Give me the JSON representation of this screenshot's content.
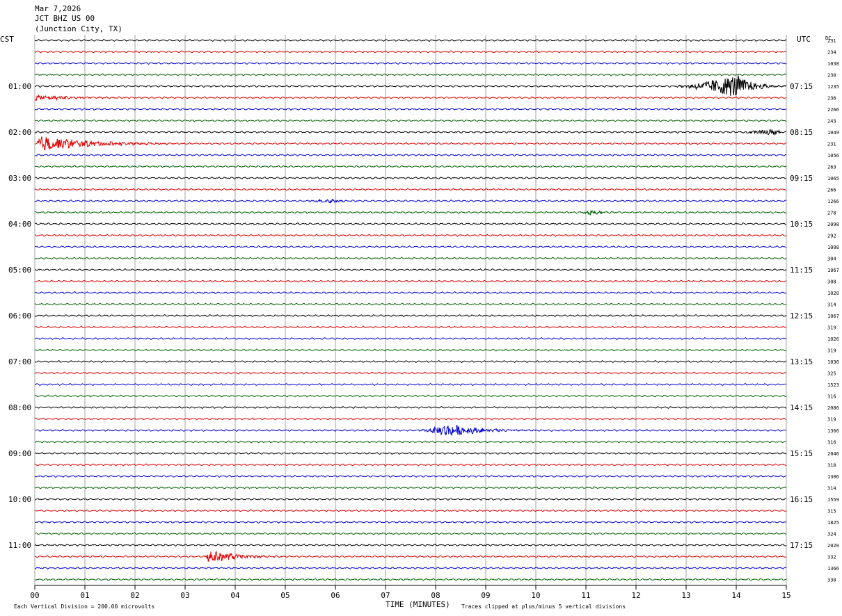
{
  "header": {
    "date": "Mar 7,2026",
    "station": "JCT BHZ US 00",
    "location": "(Junction City, TX)"
  },
  "left_timezone": "CST",
  "right_timezone": "UTC",
  "dc_label": "DC",
  "footer": {
    "scale_note": "Each Vertical Division =  200.00 microvolts",
    "xlabel": "TIME (MINUTES)",
    "clip_note": "Traces clipped at plus/minus 5 vertical divisions"
  },
  "chart_data": {
    "type": "line",
    "subtype": "helicorder",
    "xlabel": "TIME (MINUTES)",
    "xlim": [
      0,
      15
    ],
    "x_ticks": [
      "00",
      "01",
      "02",
      "03",
      "04",
      "05",
      "06",
      "07",
      "08",
      "09",
      "10",
      "11",
      "12",
      "13",
      "14",
      "15"
    ],
    "minutes_per_line": 15,
    "line_count": 48,
    "trace_colors": [
      "#000000",
      "#e00000",
      "#0000d0",
      "#006000"
    ],
    "left_hour_labels": [
      "01:00",
      "02:00",
      "03:00",
      "04:00",
      "05:00",
      "06:00",
      "07:00",
      "08:00",
      "09:00",
      "10:00",
      "11:00"
    ],
    "right_hour_labels": [
      "07:15",
      "08:15",
      "09:15",
      "10:15",
      "11:15",
      "12:15",
      "13:15",
      "14:15",
      "15:15",
      "16:15",
      "17:15"
    ],
    "dc_offsets": [
      "231",
      "234",
      "1038",
      "230",
      "1235",
      "236",
      "2266",
      "243",
      "1049",
      "231",
      "1056",
      "263",
      "1065",
      "266",
      "1266",
      "278",
      "2098",
      "292",
      "1008",
      "304",
      "1067",
      "308",
      "1020",
      "314",
      "1067",
      "319",
      "1026",
      "319",
      "1036",
      "325",
      "1523",
      "316",
      "2086",
      "319",
      "1366",
      "316",
      "2046",
      "310",
      "1306",
      "314",
      "1559",
      "315",
      "1825",
      "324",
      "2020",
      "332",
      "1366",
      "330"
    ],
    "events": [
      {
        "line": 4,
        "start_min": 12.7,
        "peak_min": 14.0,
        "end_min": 15.0,
        "amplitude_div": 5.0,
        "color": "#000000"
      },
      {
        "line": 5,
        "start_min": 0.0,
        "peak_min": 0.0,
        "end_min": 2.5,
        "amplitude_div": 1.2,
        "color": "#e00000"
      },
      {
        "line": 8,
        "start_min": 13.9,
        "peak_min": 14.8,
        "end_min": 15.0,
        "amplitude_div": 1.5,
        "color": "#000000"
      },
      {
        "line": 9,
        "start_min": 0.0,
        "peak_min": 0.1,
        "end_min": 3.0,
        "amplitude_div": 3.5,
        "color": "#e00000"
      },
      {
        "line": 14,
        "start_min": 5.3,
        "peak_min": 5.9,
        "end_min": 6.6,
        "amplitude_div": 0.9,
        "color": "#0000d0"
      },
      {
        "line": 15,
        "start_min": 10.8,
        "peak_min": 11.1,
        "end_min": 11.8,
        "amplitude_div": 1.0,
        "color": "#006000"
      },
      {
        "line": 34,
        "start_min": 7.6,
        "peak_min": 8.25,
        "end_min": 10.1,
        "amplitude_div": 2.8,
        "color": "#0000d0"
      },
      {
        "line": 45,
        "start_min": 3.4,
        "peak_min": 3.45,
        "end_min": 5.1,
        "amplitude_div": 3.0,
        "color": "#e00000"
      }
    ]
  }
}
